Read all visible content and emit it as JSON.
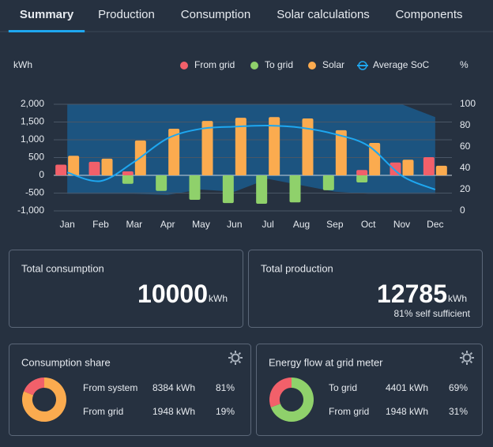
{
  "tabs": [
    {
      "label": "Summary",
      "active": true
    },
    {
      "label": "Production",
      "active": false
    },
    {
      "label": "Consumption",
      "active": false
    },
    {
      "label": "Solar calculations",
      "active": false
    },
    {
      "label": "Components",
      "active": false
    }
  ],
  "chart_data": {
    "type": "bar",
    "y_label": "kWh",
    "y2_label": "%",
    "categories": [
      "Jan",
      "Feb",
      "Mar",
      "Apr",
      "May",
      "Jun",
      "Jul",
      "Aug",
      "Sep",
      "Oct",
      "Nov",
      "Dec"
    ],
    "ylim": [
      -1000,
      2000
    ],
    "yticks": [
      {
        "value": -1000,
        "label": "-1,000"
      },
      -500,
      0,
      500,
      {
        "value": 1000,
        "label": "1,000"
      },
      {
        "value": 1500,
        "label": "1,500"
      },
      {
        "value": 2000,
        "label": "2,000"
      }
    ],
    "y2lim": [
      0,
      100
    ],
    "y2ticks": [
      0,
      20,
      40,
      60,
      80,
      100
    ],
    "grid": true,
    "legend": "top-right",
    "series": [
      {
        "name": "From grid",
        "color": "#f2606a",
        "values": [
          300,
          380,
          110,
          0,
          0,
          0,
          0,
          0,
          0,
          150,
          360,
          510
        ]
      },
      {
        "name": "To grid",
        "color": "#8fd16b",
        "values": [
          0,
          0,
          -240,
          -440,
          -690,
          -780,
          -800,
          -760,
          -420,
          -200,
          0,
          0
        ]
      },
      {
        "name": "Solar",
        "color": "#fbab4f",
        "values": [
          550,
          470,
          980,
          1310,
          1530,
          1620,
          1640,
          1600,
          1270,
          910,
          440,
          270
        ]
      },
      {
        "name": "Average SoC",
        "type": "line",
        "axis": "y2",
        "color": "#1ea7f0",
        "values": [
          36,
          28,
          46,
          68,
          77,
          79,
          80,
          78,
          72,
          61,
          33,
          20
        ]
      }
    ],
    "soc_band": {
      "axis": "y2",
      "color": "#1b5b8c",
      "upper": [
        100,
        100,
        100,
        100,
        100,
        100,
        100,
        100,
        100,
        100,
        100,
        88
      ],
      "lower": [
        16,
        16,
        16,
        15,
        20,
        18,
        30,
        24,
        18,
        16,
        16,
        16
      ]
    }
  },
  "totals": [
    {
      "title": "Total consumption",
      "value": 10000,
      "unit": "kWh"
    },
    {
      "title": "Total production",
      "value": 12785,
      "unit": "kWh",
      "note": "81% self sufficient"
    }
  ],
  "shares": [
    {
      "title": "Consumption share",
      "items": [
        {
          "name": "From system",
          "color": "#fbab4f",
          "value": 8384,
          "value_label": "8384 kWh",
          "share_label": "81%"
        },
        {
          "name": "From grid",
          "color": "#f2606a",
          "value": 1948,
          "value_label": "1948 kWh",
          "share_label": "19%"
        }
      ]
    },
    {
      "title": "Energy flow at grid meter",
      "items": [
        {
          "name": "To grid",
          "color": "#8fd16b",
          "value": 4401,
          "value_label": "4401 kWh",
          "share_label": "69%"
        },
        {
          "name": "From grid",
          "color": "#f2606a",
          "value": 1948,
          "value_label": "1948 kWh",
          "share_label": "31%"
        }
      ]
    }
  ]
}
